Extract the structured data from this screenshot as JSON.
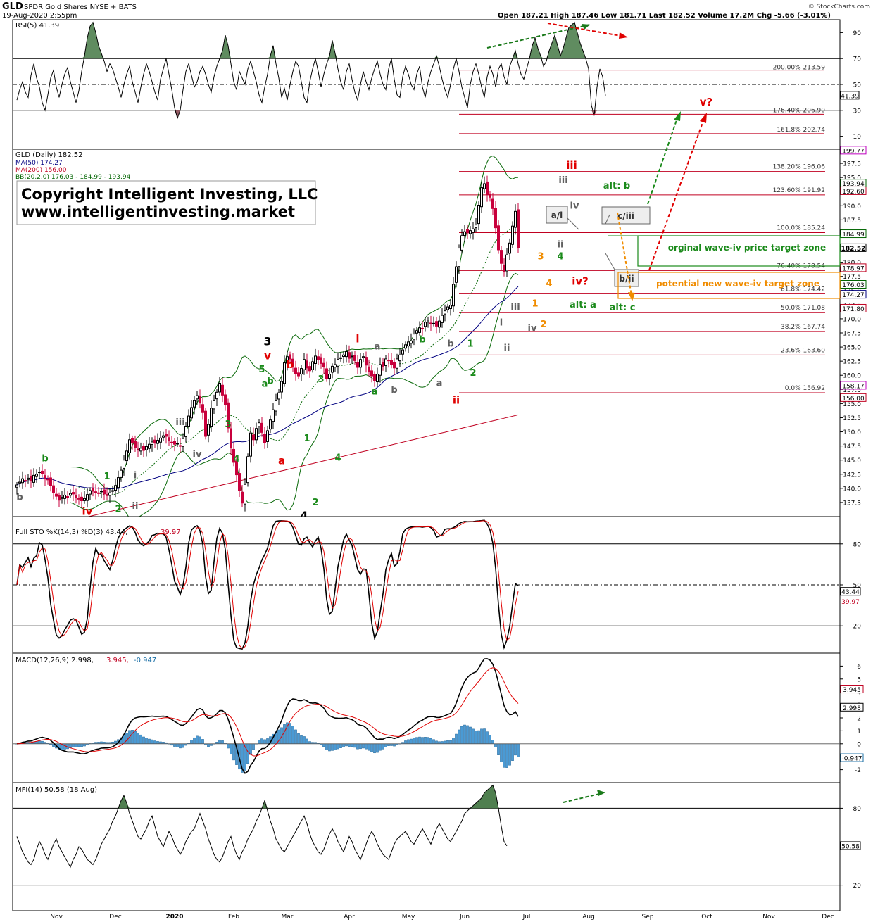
{
  "header": {
    "ticker": "GLD",
    "name": "SPDR Gold Shares NYSE + BATS",
    "date": "19-Aug-2020 2:55pm",
    "ohlc": "Open 187.21  High 187.46  Low 181.71  Last 182.52  Volume 17.2M  Chg -5.66 (-3.01%)",
    "logo": "© StockCharts.com"
  },
  "colors": {
    "up": "#000000",
    "down": "#c8003c",
    "ma50": "#000080",
    "ma200": "#c00020",
    "bb": "#006400",
    "green": "#1a8a1a",
    "red": "#e00000",
    "orange": "#f08c00",
    "gray": "#707070"
  },
  "copyright": {
    "line1": "Copyright Intelligent Investing, LLC",
    "line2": "www.intelligentinvesting.market"
  },
  "x_axis": {
    "labels": [
      {
        "t": "Nov",
        "d": 14
      },
      {
        "t": "Dec",
        "d": 35
      },
      {
        "t": "2020",
        "d": 56
      },
      {
        "t": "Feb",
        "d": 77
      },
      {
        "t": "Mar",
        "d": 96
      },
      {
        "t": "Apr",
        "d": 118
      },
      {
        "t": "May",
        "d": 139
      },
      {
        "t": "Jun",
        "d": 159
      },
      {
        "t": "Jul",
        "d": 181
      },
      {
        "t": "Aug",
        "d": 203
      },
      {
        "t": "Sep",
        "d": 224
      },
      {
        "t": "Oct",
        "d": 245
      },
      {
        "t": "Nov",
        "d": 267
      },
      {
        "t": "Dec",
        "d": 288
      }
    ]
  },
  "chart_data": [
    {
      "type": "line",
      "panel": "rsi",
      "legend": "RSI(5) 41.39",
      "ylim": [
        0,
        100
      ],
      "ticks": [
        10,
        30,
        50,
        70,
        90
      ],
      "levels": [
        30,
        50,
        70
      ],
      "last_label": "41.39",
      "fib_levels": [
        {
          "label": "200.00% 213.59",
          "pct": "200.00%",
          "price": 213.59
        },
        {
          "label": "176.40% 206.90",
          "pct": "176.40%",
          "price": 206.9
        },
        {
          "label": "161.8% 202.74",
          "pct": "161.8%",
          "price": 202.74
        }
      ],
      "series": [
        {
          "values": [
            38,
            46,
            52,
            44,
            40,
            57,
            66,
            55,
            48,
            36,
            30,
            42,
            55,
            61,
            48,
            40,
            50,
            58,
            63,
            52,
            44,
            36,
            45,
            60,
            72,
            86,
            95,
            98,
            90,
            80,
            74,
            68,
            60,
            66,
            62,
            55,
            48,
            40,
            50,
            58,
            64,
            52,
            44,
            36,
            48,
            58,
            66,
            60,
            52,
            44,
            38,
            54,
            62,
            70,
            58,
            46,
            32,
            24,
            30,
            46,
            60,
            66,
            57,
            48,
            52,
            60,
            64,
            58,
            50,
            44,
            56,
            64,
            70,
            76,
            88,
            80,
            66,
            52,
            46,
            60,
            55,
            50,
            62,
            68,
            60,
            52,
            42,
            36,
            48,
            58,
            72,
            80,
            66,
            55,
            40,
            47,
            38,
            50,
            60,
            68,
            64,
            52,
            40,
            36,
            52,
            62,
            70,
            60,
            48,
            58,
            66,
            72,
            84,
            74,
            62,
            52,
            46,
            60,
            66,
            54,
            44,
            38,
            50,
            60,
            52,
            46,
            55,
            62,
            68,
            58,
            50,
            46,
            62,
            70,
            54,
            42,
            40,
            56,
            64,
            58,
            50,
            46,
            58,
            64,
            48,
            40,
            52,
            60,
            66,
            72,
            64,
            54,
            46,
            40,
            50,
            62,
            70,
            60,
            48,
            40,
            32,
            50,
            60,
            66,
            58,
            48,
            40,
            56,
            64,
            58,
            48,
            62,
            66,
            56,
            50,
            64,
            70,
            76,
            66,
            58,
            54,
            62,
            70,
            80,
            86,
            78,
            72,
            64,
            68,
            76,
            82,
            88,
            80,
            72,
            78,
            86,
            94,
            96,
            98,
            90,
            82,
            76,
            70,
            62,
            34,
            26,
            48,
            62,
            56,
            41.39
          ]
        }
      ]
    },
    {
      "type": "candlestick",
      "panel": "price",
      "legend": {
        "gld": "GLD (Daily) 182.52",
        "ma50": "MA(50) 174.27",
        "ma200": "MA(200) 156.00",
        "bb": "BB(20,2.0) 176.03 - 184.99 - 193.94"
      },
      "ylim": [
        135,
        200
      ],
      "ticks": [
        137.5,
        140,
        142.5,
        145,
        147.5,
        150,
        152.5,
        155,
        157.5,
        160,
        162.5,
        165,
        167.5,
        170,
        172.5,
        175,
        177.5,
        180,
        182.5,
        185,
        187.5,
        190,
        192.5,
        195,
        197.5
      ],
      "close": [
        140.6,
        141.1,
        141.7,
        141.4,
        141.8,
        141.3,
        142.3,
        142.5,
        142.9,
        142.6,
        141.7,
        141.5,
        140.5,
        139.3,
        138.6,
        137.9,
        138.4,
        138.8,
        138.5,
        139.1,
        139.0,
        138.3,
        138.1,
        137.8,
        138.2,
        138.9,
        139.6,
        139.5,
        139.4,
        139.2,
        139.5,
        139.0,
        138.9,
        139.2,
        139.6,
        140.5,
        141.9,
        143.2,
        145.0,
        146.6,
        148.6,
        148.0,
        147.2,
        146.8,
        147.1,
        146.7,
        147.4,
        147.8,
        148.2,
        148.0,
        148.5,
        148.9,
        149.3,
        149.2,
        148.4,
        148.1,
        147.8,
        147.9,
        147.5,
        148.8,
        151.0,
        152.8,
        154.3,
        155.5,
        156.4,
        155.1,
        153.4,
        149.2,
        151.3,
        154.2,
        155.5,
        157.0,
        158.6,
        156.5,
        154.8,
        150.7,
        147.2,
        144.6,
        142.4,
        139.6,
        137.4,
        140.7,
        145.6,
        149.8,
        148.6,
        150.6,
        151.6,
        149.9,
        148.1,
        150.2,
        152.1,
        153.9,
        155.5,
        156.9,
        158.9,
        162.2,
        163.3,
        162.9,
        161.6,
        160.3,
        159.9,
        161.2,
        162.8,
        161.3,
        160.8,
        162.4,
        163.4,
        162.8,
        162.1,
        161.5,
        159.4,
        160.2,
        161.6,
        161.9,
        162.8,
        163.1,
        163.6,
        164.2,
        163.0,
        163.4,
        162.6,
        161.4,
        162.8,
        163.3,
        161.8,
        160.6,
        159.9,
        159.1,
        160.2,
        161.9,
        161.6,
        162.9,
        162.7,
        161.9,
        161.3,
        162.9,
        163.6,
        164.5,
        165.4,
        165.9,
        166.1,
        167.3,
        167.9,
        168.4,
        168.3,
        169.4,
        169.6,
        169.1,
        169.2,
        168.7,
        169.6,
        170.6,
        171.4,
        172.1,
        172.4,
        176.1,
        179.2,
        182.5,
        184.7,
        185.4,
        185.2,
        185.6,
        185.9,
        186.6,
        190.1,
        193.2,
        193.9,
        192.0,
        191.5,
        189.5,
        186.1,
        182.2,
        179.8,
        178.3,
        181.3,
        183.4,
        186.4,
        189.0,
        182.52
      ]
    },
    {
      "type": "line",
      "panel": "stochastic",
      "legend": "Full STO %K(14,3) %D(3) 43.44,",
      "legend2": "39.97",
      "ylim": [
        0,
        100
      ],
      "ticks": [
        20,
        50,
        80
      ],
      "last_k": "43.44",
      "last_d": "39.97"
    },
    {
      "type": "line",
      "panel": "macd",
      "legend": "MACD(12,26,9) 2.998,",
      "legend2": "3.945,",
      "legend3": "-0.947",
      "ylim": [
        -3,
        7
      ],
      "ticks": [
        -2,
        -1,
        0,
        1,
        2,
        3,
        4,
        5,
        6
      ],
      "last_macd": "2.998",
      "last_signal": "3.945",
      "last_hist": "-0.947"
    },
    {
      "type": "line",
      "panel": "mfi",
      "legend": "MFI(14) 50.58 (18 Aug)",
      "ylim": [
        0,
        100
      ],
      "ticks": [
        20,
        50,
        80
      ],
      "levels": [
        20,
        80
      ],
      "last_label": "50.58",
      "series": [
        {
          "values": [
            58,
            52,
            46,
            42,
            38,
            36,
            40,
            48,
            54,
            50,
            44,
            40,
            46,
            52,
            56,
            50,
            46,
            42,
            38,
            34,
            40,
            44,
            50,
            48,
            44,
            40,
            38,
            36,
            40,
            46,
            52,
            56,
            60,
            64,
            70,
            74,
            80,
            86,
            90,
            84,
            76,
            70,
            64,
            58,
            56,
            60,
            64,
            70,
            74,
            66,
            58,
            54,
            50,
            56,
            62,
            58,
            52,
            48,
            44,
            48,
            54,
            58,
            62,
            64,
            70,
            76,
            70,
            64,
            56,
            50,
            44,
            40,
            38,
            42,
            48,
            54,
            58,
            50,
            44,
            40,
            46,
            50,
            56,
            60,
            64,
            70,
            74,
            80,
            86,
            78,
            70,
            64,
            56,
            52,
            48,
            46,
            50,
            54,
            58,
            62,
            66,
            70,
            74,
            68,
            60,
            54,
            50,
            46,
            44,
            48,
            54,
            60,
            64,
            60,
            54,
            50,
            46,
            52,
            58,
            54,
            48,
            44,
            40,
            46,
            52,
            58,
            62,
            58,
            52,
            48,
            44,
            42,
            40,
            46,
            52,
            56,
            58,
            60,
            62,
            58,
            54,
            52,
            56,
            60,
            64,
            60,
            56,
            52,
            58,
            64,
            68,
            64,
            60,
            56,
            54,
            58,
            62,
            66,
            70,
            76,
            78,
            80,
            82,
            84,
            86,
            88,
            92,
            94,
            96,
            98,
            92,
            80,
            66,
            54,
            50.58
          ]
        }
      ]
    }
  ],
  "annotations": {
    "price": [
      {
        "t": "b",
        "d": 1,
        "p": 137.9,
        "c": "gray"
      },
      {
        "t": "b",
        "d": 10,
        "p": 144.8,
        "c": "green"
      },
      {
        "t": "1",
        "d": 32,
        "p": 141.6,
        "c": "green"
      },
      {
        "t": "i",
        "d": 42,
        "p": 141.8,
        "c": "gray"
      },
      {
        "t": "2",
        "d": 36,
        "p": 135.8,
        "c": "green"
      },
      {
        "t": "ii",
        "d": 42,
        "p": 136.4,
        "c": "gray"
      },
      {
        "t": "iv",
        "d": 25,
        "p": 135.3,
        "c": "red"
      },
      {
        "t": "iii",
        "d": 58,
        "p": 151.2,
        "c": "gray"
      },
      {
        "t": "iv",
        "d": 64,
        "p": 145.5,
        "c": "gray"
      },
      {
        "t": "3",
        "d": 75,
        "p": 150.8,
        "c": "green"
      },
      {
        "t": "4",
        "d": 78,
        "p": 144.7,
        "c": "green"
      },
      {
        "t": "5",
        "d": 87,
        "p": 160.5,
        "c": "green"
      },
      {
        "t": "a",
        "d": 88,
        "p": 158.0,
        "c": "green"
      },
      {
        "t": "b",
        "d": 90,
        "p": 158.5,
        "c": "green"
      },
      {
        "t": "3",
        "d": 89,
        "p": 165.3,
        "c": "black"
      },
      {
        "t": "v",
        "d": 89,
        "p": 162.8,
        "c": "red"
      },
      {
        "t": "b",
        "d": 97,
        "p": 161.3,
        "c": "red"
      },
      {
        "t": "a",
        "d": 94,
        "p": 144.3,
        "c": "red"
      },
      {
        "t": "3",
        "d": 108,
        "p": 158.8,
        "c": "green"
      },
      {
        "t": "4",
        "d": 114,
        "p": 144.9,
        "c": "green"
      },
      {
        "t": "2",
        "d": 106,
        "p": 137.0,
        "c": "green"
      },
      {
        "t": "4",
        "d": 102,
        "p": 134.5,
        "c": "black"
      },
      {
        "t": "1",
        "d": 103,
        "p": 148.3,
        "c": "green"
      },
      {
        "t": "i",
        "d": 121,
        "p": 165.8,
        "c": "red"
      },
      {
        "t": "a",
        "d": 128,
        "p": 164.6,
        "c": "gray"
      },
      {
        "t": "a",
        "d": 127,
        "p": 156.6,
        "c": "green"
      },
      {
        "t": "b",
        "d": 134,
        "p": 156.9,
        "c": "gray"
      },
      {
        "t": "b",
        "d": 144,
        "p": 165.8,
        "c": "green"
      },
      {
        "t": "a",
        "d": 150,
        "p": 158.1,
        "c": "gray"
      },
      {
        "t": "b",
        "d": 154,
        "p": 165.1,
        "c": "gray"
      },
      {
        "t": "ii",
        "d": 156,
        "p": 155.0,
        "c": "red"
      },
      {
        "t": "1",
        "d": 161,
        "p": 165.1,
        "c": "green"
      },
      {
        "t": "2",
        "d": 162,
        "p": 159.9,
        "c": "green"
      },
      {
        "t": "i",
        "d": 172,
        "p": 168.8,
        "c": "gray"
      },
      {
        "t": "ii",
        "d": 174,
        "p": 164.3,
        "c": "gray"
      },
      {
        "t": "iii",
        "d": 177,
        "p": 171.5,
        "c": "gray"
      },
      {
        "t": "iv",
        "d": 183,
        "p": 167.8,
        "c": "gray"
      },
      {
        "t": "1",
        "d": 184,
        "p": 172.2,
        "c": "orange"
      },
      {
        "t": "2",
        "d": 187,
        "p": 168.5,
        "c": "orange"
      },
      {
        "t": "3",
        "d": 186,
        "p": 180.5,
        "c": "orange"
      },
      {
        "t": "4",
        "d": 189,
        "p": 175.8,
        "c": "orange"
      },
      {
        "t": "4",
        "d": 193,
        "p": 180.5,
        "c": "green"
      },
      {
        "t": "ii",
        "d": 193,
        "p": 182.6,
        "c": "gray"
      },
      {
        "t": "iii",
        "d": 194,
        "p": 194.0,
        "c": "gray"
      },
      {
        "t": "iv",
        "d": 198,
        "p": 189.5,
        "c": "gray"
      },
      {
        "t": "iii",
        "d": 197,
        "p": 196.5,
        "c": "red"
      },
      {
        "t": "iv?",
        "d": 200,
        "p": 176.0,
        "c": "red"
      },
      {
        "t": "alt: a",
        "d": 201,
        "p": 172.0,
        "c": "green"
      },
      {
        "t": "alt: b",
        "d": 213,
        "p": 193.0,
        "c": "green"
      },
      {
        "t": "alt: c",
        "d": 215,
        "p": 171.5,
        "c": "green"
      },
      {
        "t": "v?",
        "d": 237,
        "p": 0,
        "c": "red"
      }
    ],
    "box_ai": "a/i",
    "box_ciii": "c/iii",
    "box_bii": "b/ii",
    "zone_original": "orginal wave-iv price target zone",
    "zone_new": "potential new wave-iv target zone",
    "fib": [
      {
        "label": "138.20% 196.06",
        "price": 196.06
      },
      {
        "label": "123.60% 191.92",
        "price": 191.92
      },
      {
        "label": "100.0% 185.24",
        "price": 185.24
      },
      {
        "label": "76.40% 178.54",
        "price": 178.54
      },
      {
        "label": "61.8% 174.42",
        "price": 174.42
      },
      {
        "label": "50.0% 171.08",
        "price": 171.08
      },
      {
        "label": "38.2% 167.74",
        "price": 167.74
      },
      {
        "label": "23.6% 163.60",
        "price": 163.6
      },
      {
        "label": "0.0% 156.92",
        "price": 156.92
      }
    ],
    "right_labels": [
      {
        "t": "199.77",
        "p": 199.77,
        "c": "#c000c0"
      },
      {
        "t": "193.94",
        "p": 193.94,
        "c": "#006400"
      },
      {
        "t": "192.60",
        "p": 192.6,
        "c": "#c00020"
      },
      {
        "t": "184.99",
        "p": 184.99,
        "c": "#006400"
      },
      {
        "t": "182.52",
        "p": 182.52,
        "c": "#000000"
      },
      {
        "t": "178.97",
        "p": 178.97,
        "c": "#c00020"
      },
      {
        "t": "176.03",
        "p": 176.03,
        "c": "#006400"
      },
      {
        "t": "174.27",
        "p": 174.27,
        "c": "#000080"
      },
      {
        "t": "171.80",
        "p": 171.8,
        "c": "#c00020"
      },
      {
        "t": "158.17",
        "p": 158.17,
        "c": "#c000c0"
      },
      {
        "t": "156.00",
        "p": 156.0,
        "c": "#c00020"
      }
    ],
    "visible_extra_ticks": [
      "167.5",
      "172.5",
      "175.0",
      "157.5"
    ]
  }
}
